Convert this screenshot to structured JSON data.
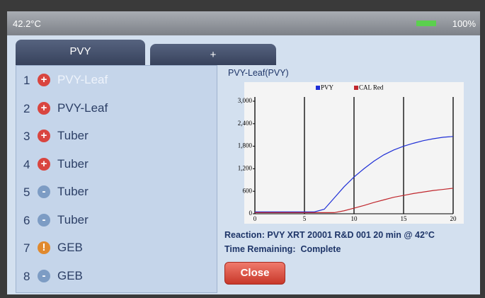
{
  "status_bar": {
    "temperature": "42.2°C",
    "battery": "100%"
  },
  "tabs": [
    "PVY",
    "+"
  ],
  "samples": [
    {
      "number": 1,
      "status": "+",
      "color": "#d9453f",
      "label": "PVY-Leaf"
    },
    {
      "number": 2,
      "status": "+",
      "color": "#d9453f",
      "label": "PVY-Leaf"
    },
    {
      "number": 3,
      "status": "+",
      "color": "#d9453f",
      "label": "Tuber"
    },
    {
      "number": 4,
      "status": "+",
      "color": "#d9453f",
      "label": "Tuber"
    },
    {
      "number": 5,
      "status": "-",
      "color": "#7d9cc4",
      "label": "Tuber"
    },
    {
      "number": 6,
      "status": "-",
      "color": "#7d9cc4",
      "label": "Tuber"
    },
    {
      "number": 7,
      "status": "!",
      "color": "#e0892e",
      "label": "GEB"
    },
    {
      "number": 8,
      "status": "-",
      "color": "#7d9cc4",
      "label": "GEB"
    }
  ],
  "chart_data": {
    "type": "line",
    "title": "PVY-Leaf(PVY)",
    "x": [
      0,
      1,
      2,
      3,
      4,
      5,
      6,
      7,
      8,
      9,
      10,
      11,
      12,
      13,
      14,
      15,
      16,
      17,
      18,
      19,
      20
    ],
    "series": [
      {
        "name": "PVY",
        "color": "#1f2fd6",
        "values": [
          50,
          50,
          50,
          50,
          50,
          50,
          50,
          120,
          420,
          720,
          980,
          1200,
          1400,
          1570,
          1700,
          1800,
          1880,
          1950,
          2000,
          2040,
          2060
        ]
      },
      {
        "name": "CAL Red",
        "color": "#c0272d",
        "values": [
          30,
          30,
          30,
          30,
          30,
          30,
          30,
          30,
          30,
          80,
          150,
          220,
          300,
          370,
          440,
          490,
          540,
          580,
          620,
          650,
          680
        ]
      }
    ],
    "xlim": [
      0,
      20
    ],
    "xticks": [
      0,
      5,
      10,
      15,
      20
    ],
    "ylim": [
      0,
      3000
    ],
    "yticks": [
      0,
      {
        "value": 600,
        "label": "600"
      },
      {
        "value": 1200,
        "label": "1,200"
      },
      {
        "value": 1800,
        "label": "1,800"
      },
      {
        "value": 2400,
        "label": "2,400"
      },
      {
        "value": 3000,
        "label": "3,000"
      }
    ],
    "xgrid": true,
    "legend": "top"
  },
  "reaction": "Reaction: PVY XRT 20001 R&D 001 20 min @ 42°C",
  "time_remaining": {
    "label": "Time Remaining:",
    "value": "Complete"
  },
  "button": "Close"
}
